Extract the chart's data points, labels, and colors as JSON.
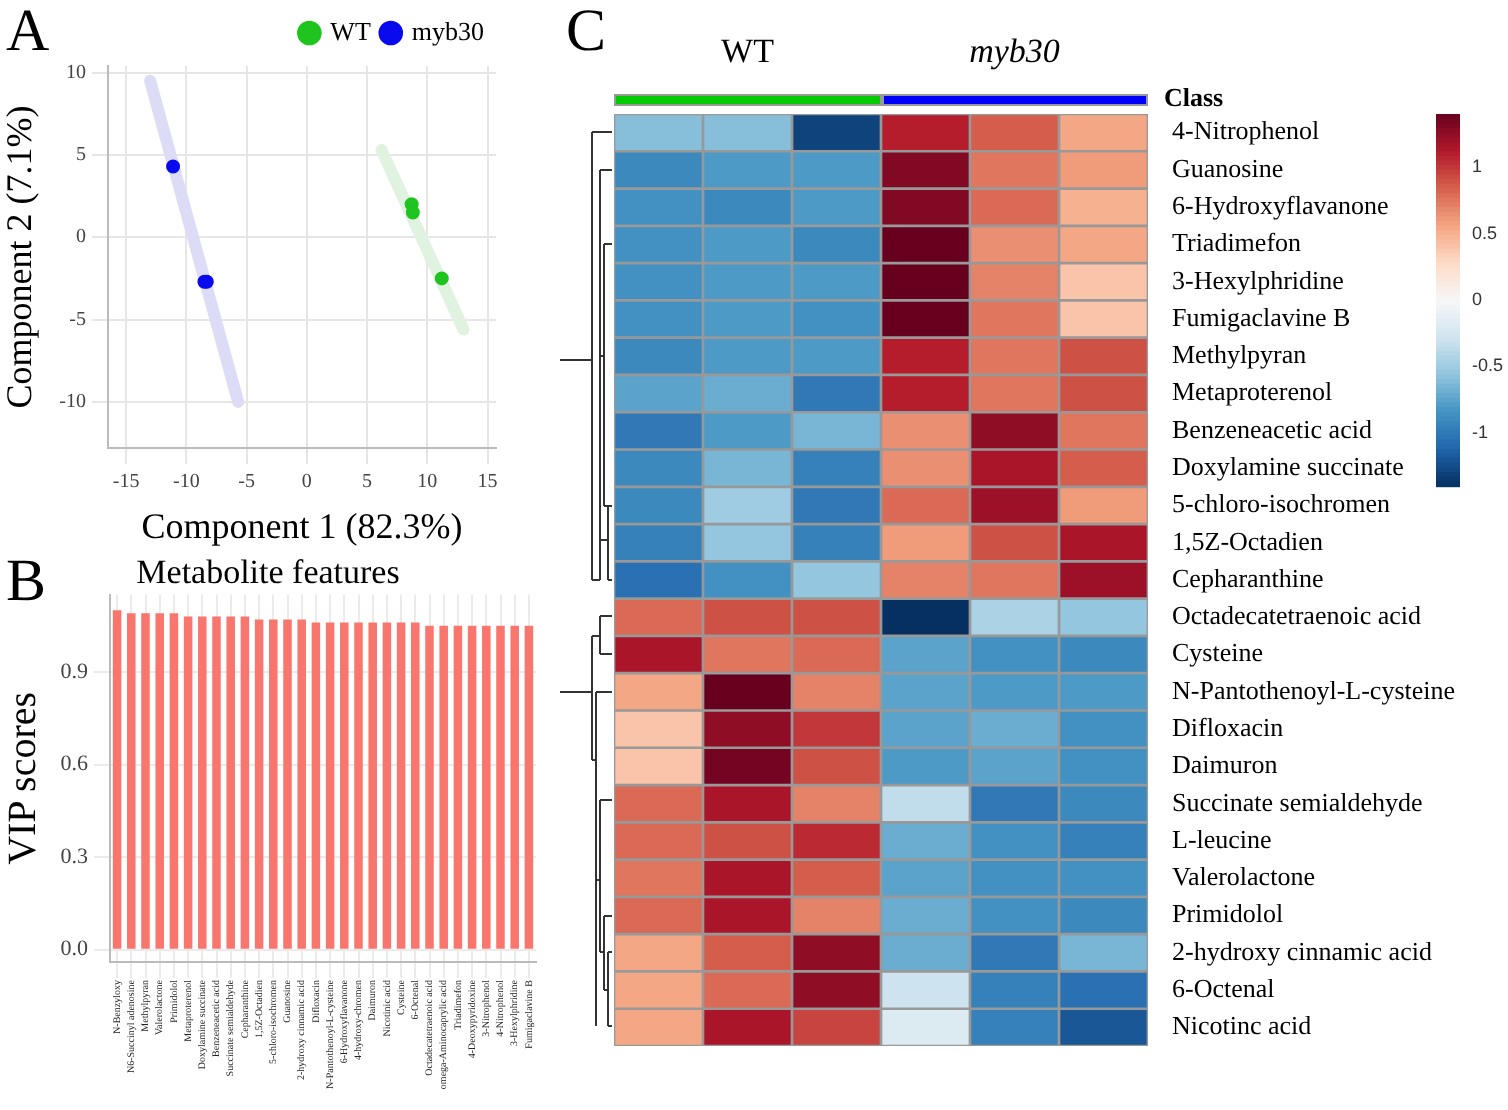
{
  "chart_data": [
    {
      "type": "scatter",
      "xlabel": "Component 1 (82.3%)",
      "ylabel": "Component 2 (7.1%)",
      "annotations": [
        "A"
      ],
      "series": [
        {
          "name": "WT",
          "color": "#1fc41f",
          "x": [
            8.7,
            8.8,
            11.2
          ],
          "values": [
            2.0,
            1.5,
            -2.5
          ]
        },
        {
          "name": "myb30",
          "color": "#0a0aee",
          "x": [
            -11.1,
            -8.5,
            -8.3
          ],
          "values": [
            4.3,
            -2.7,
            -2.7
          ]
        },
        {
          "type": "line",
          "marker": "none",
          "color": "#dcdcf6",
          "x": [
            -13,
            -5.7
          ],
          "values": [
            9.5,
            -10
          ]
        },
        {
          "type": "line",
          "marker": "none",
          "color": "#e0f2e0",
          "x": [
            6.2,
            13
          ],
          "values": [
            5.3,
            -5.6
          ]
        }
      ],
      "xlim": [
        -16.5,
        15.7
      ],
      "ylim": [
        -12.8,
        10.4
      ],
      "xticks": [
        -15,
        -10,
        -5,
        0,
        5,
        10,
        15
      ],
      "yticks": [
        -10,
        -5,
        0,
        5,
        10
      ],
      "grid": true,
      "legend": "top right",
      "marker": "circle"
    },
    {
      "type": "bar",
      "title": "Metabolite features",
      "ylabel": "VIP scores",
      "annotations": [
        "B"
      ],
      "categories": [
        "N-Benzyloxy",
        "N6-Succinyl adenosine",
        "Methylpyran",
        "Valerolactone",
        "Primidolol",
        "Metaproterenol",
        "Doxylamine succinate",
        "Benzeneacetic acid",
        "Succinate semialdehyde",
        "Cepharanthine",
        "1,5Z-Octadien",
        "5-chloro-isochromen",
        "Guanosine",
        "2-hydroxy cinnamic acid",
        "Difloxacin",
        "N-Pantothenoyl-L-cysteine",
        "6-Hydroxyflavanone",
        "4-hydroxy-chromen",
        "Daimuron",
        "Nicotinic acid",
        "Cysteine",
        "6-Octenal",
        "Octadecatetraenoic acid",
        "omega-Aminocaprylic acid",
        "Triadimefon",
        "4-Deoxypyridoxine",
        "3-Nitrophenol",
        "4-Nitrophenol",
        "3-Hexylphridine",
        "Fumigaclavine B"
      ],
      "values": [
        1.1,
        1.09,
        1.09,
        1.09,
        1.09,
        1.08,
        1.08,
        1.08,
        1.08,
        1.08,
        1.07,
        1.07,
        1.07,
        1.07,
        1.06,
        1.06,
        1.06,
        1.06,
        1.06,
        1.06,
        1.06,
        1.06,
        1.05,
        1.05,
        1.05,
        1.05,
        1.05,
        1.05,
        1.05,
        1.05
      ],
      "color": "#f8766d",
      "ylim": [
        -0.04,
        1.15
      ],
      "yticks": [
        {
          "value": 0,
          "label": "0.0"
        },
        0.3,
        0.6,
        0.9
      ],
      "grid": true
    },
    {
      "type": "heatmap",
      "annotations": [
        "C",
        "WT",
        "myb30"
      ],
      "legend_title": "Class",
      "categories": [
        null,
        null,
        null,
        null,
        null,
        null
      ],
      "y_categories": [
        "4-Nitrophenol",
        "Guanosine",
        "6-Hydroxyflavanone",
        "Triadimefon",
        "3-Hexylphridine",
        "Fumigaclavine B",
        "Methylpyran",
        "Metaproterenol",
        "Benzeneacetic acid",
        "Doxylamine succinate",
        "5-chloro-isochromen",
        "1,5Z-Octadien",
        "Cepharanthine",
        "Octadecatetraenoic acid",
        "Cysteine",
        "N-Pantothenoyl-L-cysteine",
        "Difloxacin",
        "Daimuron",
        "Succinate semialdehyde",
        "L-leucine",
        "Valerolactone",
        "Primidolol",
        "2-hydroxy cinnamic acid",
        "6-Octenal",
        "Nicotinc acid"
      ],
      "cells": [
        [
          -0.6,
          -0.6,
          -1.3,
          1.1,
          0.85,
          0.55
        ],
        [
          -0.9,
          -0.8,
          -0.8,
          1.3,
          0.75,
          0.6
        ],
        [
          -0.85,
          -0.9,
          -0.8,
          1.3,
          0.8,
          0.5
        ],
        [
          -0.85,
          -0.8,
          -0.9,
          1.4,
          0.65,
          0.55
        ],
        [
          -0.85,
          -0.8,
          -0.8,
          1.4,
          0.7,
          0.4
        ],
        [
          -0.85,
          -0.8,
          -0.85,
          1.4,
          0.75,
          0.4
        ],
        [
          -0.9,
          -0.8,
          -0.8,
          1.1,
          0.75,
          0.9
        ],
        [
          -0.75,
          -0.7,
          -1.0,
          1.1,
          0.75,
          0.9
        ],
        [
          -1.0,
          -0.8,
          -0.65,
          0.65,
          1.25,
          0.75
        ],
        [
          -0.9,
          -0.65,
          -0.95,
          0.65,
          1.15,
          0.85
        ],
        [
          -0.9,
          -0.5,
          -1.0,
          0.8,
          1.2,
          0.6
        ],
        [
          -0.95,
          -0.55,
          -0.95,
          0.6,
          0.9,
          1.15
        ],
        [
          -1.05,
          -0.85,
          -0.55,
          0.7,
          0.75,
          1.2
        ],
        [
          0.8,
          0.9,
          0.9,
          -1.4,
          -0.45,
          -0.55
        ],
        [
          1.15,
          0.75,
          0.8,
          -0.75,
          -0.85,
          -0.9
        ],
        [
          0.55,
          1.4,
          0.7,
          -0.75,
          -0.8,
          -0.8
        ],
        [
          0.4,
          1.25,
          1.0,
          -0.75,
          -0.7,
          -0.85
        ],
        [
          0.4,
          1.35,
          0.9,
          -0.8,
          -0.75,
          -0.85
        ],
        [
          0.8,
          1.15,
          0.7,
          -0.35,
          -1.0,
          -0.9
        ],
        [
          0.8,
          0.9,
          1.05,
          -0.7,
          -0.85,
          -0.95
        ],
        [
          0.75,
          1.15,
          0.85,
          -0.75,
          -0.85,
          -0.85
        ],
        [
          0.8,
          1.15,
          0.7,
          -0.7,
          -0.85,
          -0.9
        ],
        [
          0.55,
          0.85,
          1.25,
          -0.7,
          -1.0,
          -0.65
        ],
        [
          0.55,
          0.8,
          1.25,
          -0.3,
          -0.95,
          -1.05
        ],
        [
          0.55,
          1.15,
          0.95,
          -0.2,
          -0.95,
          -1.2
        ]
      ],
      "clim": [
        -1.4,
        1.4
      ],
      "cticks": [
        -1,
        -0.5,
        0,
        0.5,
        1
      ]
    }
  ]
}
